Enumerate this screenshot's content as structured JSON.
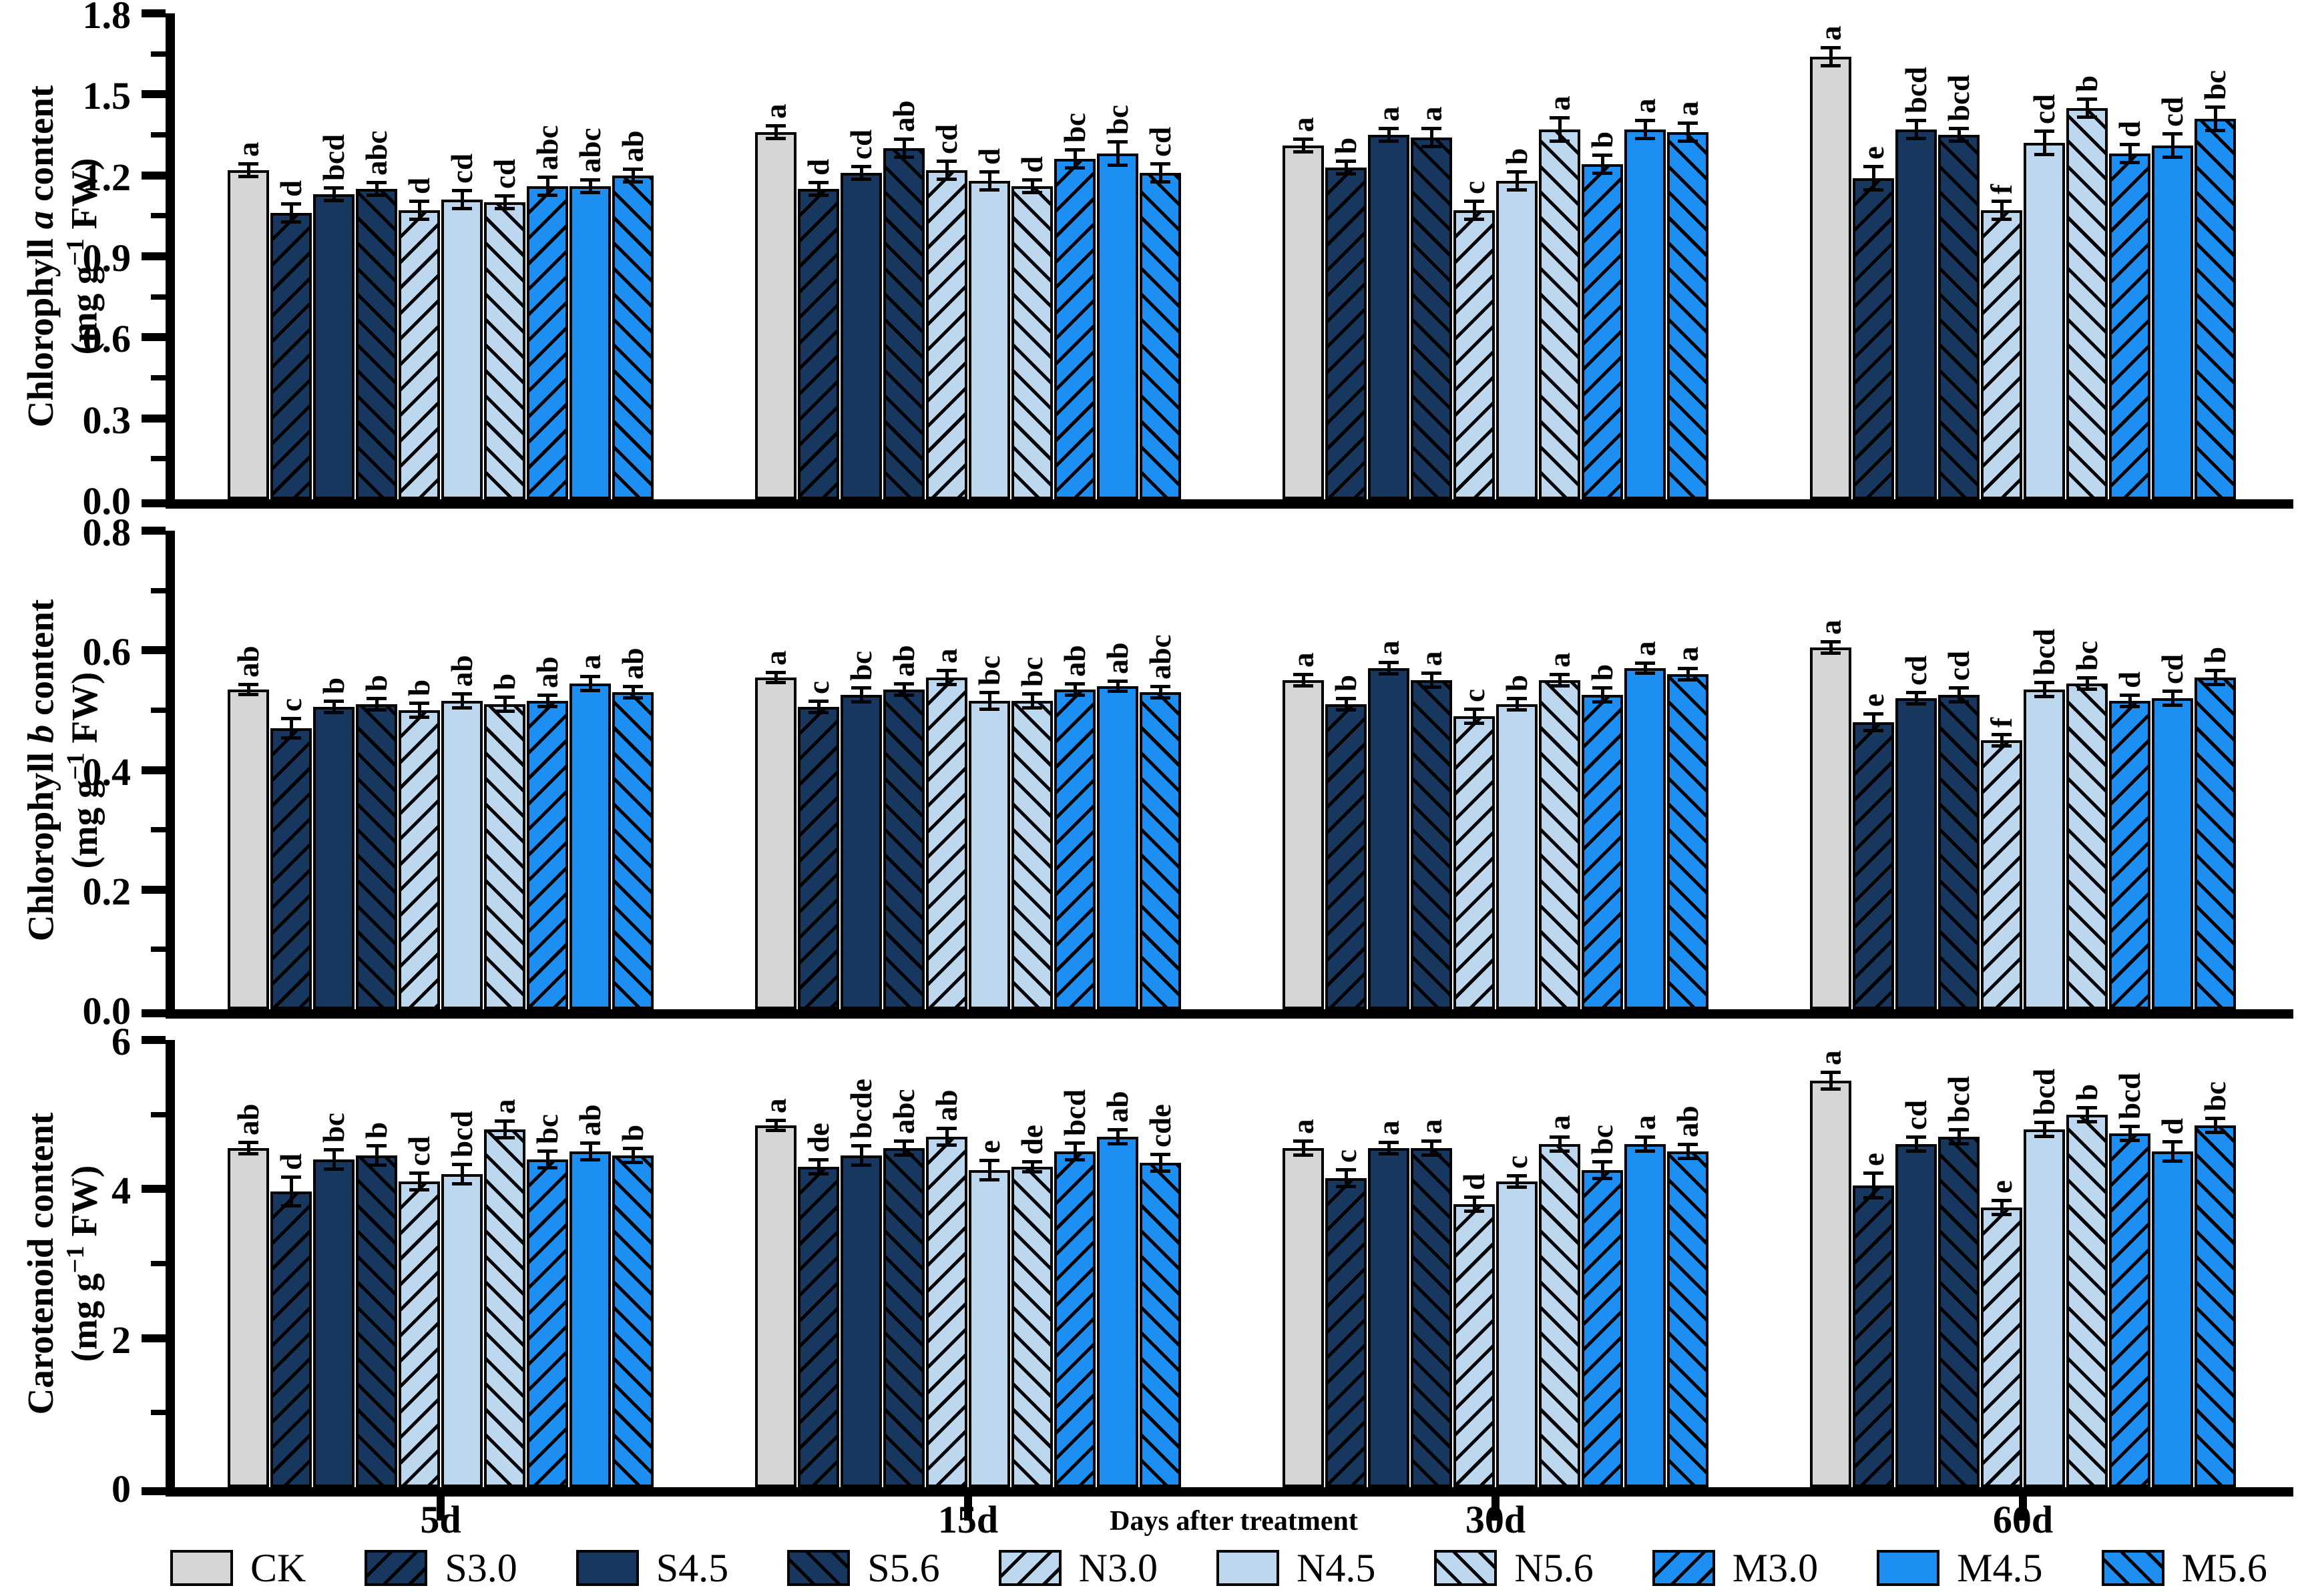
{
  "figure": {
    "x_axis_title": "Days after treatment",
    "group_labels": [
      "5d",
      "15d",
      "30d",
      "60d"
    ],
    "treatments": [
      "CK",
      "S3.0",
      "S4.5",
      "S5.6",
      "N3.0",
      "N4.5",
      "N5.6",
      "M3.0",
      "M4.5",
      "M5.6"
    ],
    "treatment_styles": [
      {
        "name": "CK",
        "fill": "#d6d6d6",
        "hatch": "none"
      },
      {
        "name": "S3.0",
        "fill": "#17375e",
        "hatch": "fwd"
      },
      {
        "name": "S4.5",
        "fill": "#17375e",
        "hatch": "none"
      },
      {
        "name": "S5.6",
        "fill": "#17375e",
        "hatch": "bwd"
      },
      {
        "name": "N3.0",
        "fill": "#bdd7ee",
        "hatch": "fwd"
      },
      {
        "name": "N4.5",
        "fill": "#bdd7ee",
        "hatch": "none"
      },
      {
        "name": "N5.6",
        "fill": "#bdd7ee",
        "hatch": "bwd"
      },
      {
        "name": "M3.0",
        "fill": "#1e8ff2",
        "hatch": "fwd"
      },
      {
        "name": "M4.5",
        "fill": "#1e8ff2",
        "hatch": "none"
      },
      {
        "name": "M5.6",
        "fill": "#1e8ff2",
        "hatch": "bwd"
      }
    ],
    "outline_color": "#000000",
    "hatch_color": "#000000"
  },
  "chart_data": [
    {
      "type": "bar",
      "ylabel_prefix": "Chlorophyll",
      "ylabel_italic": "a",
      "ylabel_suffix": "content",
      "ylabel_units": "(mg g-1 FW)",
      "ylim": [
        0,
        1.8
      ],
      "yticks": [
        "0.0",
        "0.3",
        "0.6",
        "0.9",
        "1.2",
        "1.5",
        "1.8"
      ],
      "categories": [
        "5d",
        "15d",
        "30d",
        "60d"
      ],
      "series": [
        {
          "name": "CK",
          "values": [
            1.22,
            1.36,
            1.31,
            1.64
          ],
          "errors": [
            0.02,
            0.02,
            0.02,
            0.03
          ],
          "letters": [
            "a",
            "a",
            "a",
            "a"
          ]
        },
        {
          "name": "S3.0",
          "values": [
            1.06,
            1.15,
            1.23,
            1.19
          ],
          "errors": [
            0.03,
            0.02,
            0.02,
            0.04
          ],
          "letters": [
            "d",
            "d",
            "b",
            "e"
          ]
        },
        {
          "name": "S4.5",
          "values": [
            1.13,
            1.21,
            1.35,
            1.37
          ],
          "errors": [
            0.02,
            0.02,
            0.02,
            0.03
          ],
          "letters": [
            "bcd",
            "cd",
            "a",
            "bcd"
          ]
        },
        {
          "name": "S5.6",
          "values": [
            1.15,
            1.3,
            1.34,
            1.35
          ],
          "errors": [
            0.02,
            0.03,
            0.03,
            0.02
          ],
          "letters": [
            "abc",
            "ab",
            "a",
            "bcd"
          ]
        },
        {
          "name": "N3.0",
          "values": [
            1.07,
            1.22,
            1.07,
            1.07
          ],
          "errors": [
            0.03,
            0.03,
            0.03,
            0.03
          ],
          "letters": [
            "d",
            "cd",
            "c",
            "f"
          ]
        },
        {
          "name": "N4.5",
          "values": [
            1.11,
            1.18,
            1.18,
            1.32
          ],
          "errors": [
            0.03,
            0.03,
            0.03,
            0.04
          ],
          "letters": [
            "cd",
            "d",
            "b",
            "cd"
          ]
        },
        {
          "name": "N5.6",
          "values": [
            1.1,
            1.16,
            1.37,
            1.45
          ],
          "errors": [
            0.02,
            0.02,
            0.04,
            0.03
          ],
          "letters": [
            "cd",
            "d",
            "a",
            "b"
          ]
        },
        {
          "name": "M3.0",
          "values": [
            1.16,
            1.26,
            1.24,
            1.28
          ],
          "errors": [
            0.03,
            0.03,
            0.03,
            0.03
          ],
          "letters": [
            "abc",
            "bc",
            "b",
            "d"
          ]
        },
        {
          "name": "M4.5",
          "values": [
            1.16,
            1.28,
            1.37,
            1.31
          ],
          "errors": [
            0.02,
            0.04,
            0.03,
            0.04
          ],
          "letters": [
            "abc",
            "bc",
            "a",
            "cd"
          ]
        },
        {
          "name": "M5.6",
          "values": [
            1.2,
            1.21,
            1.36,
            1.41
          ],
          "errors": [
            0.02,
            0.03,
            0.03,
            0.04
          ],
          "letters": [
            "ab",
            "cd",
            "a",
            "bc"
          ]
        }
      ]
    },
    {
      "type": "bar",
      "ylabel_prefix": "Chlorophyll",
      "ylabel_italic": "b",
      "ylabel_suffix": "content",
      "ylabel_units": "(mg g-1 FW)",
      "ylim": [
        0,
        0.8
      ],
      "yticks": [
        "0.0",
        "0.2",
        "0.4",
        "0.6",
        "0.8"
      ],
      "categories": [
        "5d",
        "15d",
        "30d",
        "60d"
      ],
      "series": [
        {
          "name": "CK",
          "values": [
            0.535,
            0.555,
            0.55,
            0.605
          ],
          "errors": [
            0.006,
            0.006,
            0.008,
            0.008
          ],
          "letters": [
            "ab",
            "a",
            "a",
            "a"
          ]
        },
        {
          "name": "S3.0",
          "values": [
            0.47,
            0.505,
            0.51,
            0.48
          ],
          "errors": [
            0.015,
            0.008,
            0.008,
            0.012
          ],
          "letters": [
            "c",
            "c",
            "b",
            "e"
          ]
        },
        {
          "name": "S4.5",
          "values": [
            0.505,
            0.525,
            0.57,
            0.52
          ],
          "errors": [
            0.008,
            0.01,
            0.008,
            0.008
          ],
          "letters": [
            "b",
            "bc",
            "a",
            "cd"
          ]
        },
        {
          "name": "S5.6",
          "values": [
            0.51,
            0.535,
            0.55,
            0.525
          ],
          "errors": [
            0.008,
            0.008,
            0.01,
            0.01
          ],
          "letters": [
            "b",
            "ab",
            "a",
            "cd"
          ]
        },
        {
          "name": "N3.0",
          "values": [
            0.5,
            0.555,
            0.49,
            0.45
          ],
          "errors": [
            0.01,
            0.01,
            0.01,
            0.008
          ],
          "letters": [
            "b",
            "a",
            "c",
            "f"
          ]
        },
        {
          "name": "N4.5",
          "values": [
            0.515,
            0.515,
            0.51,
            0.535
          ],
          "errors": [
            0.01,
            0.012,
            0.008,
            0.01
          ],
          "letters": [
            "ab",
            "bc",
            "b",
            "bcd"
          ]
        },
        {
          "name": "N5.6",
          "values": [
            0.51,
            0.515,
            0.55,
            0.545
          ],
          "errors": [
            0.01,
            0.01,
            0.008,
            0.008
          ],
          "letters": [
            "b",
            "bc",
            "a",
            "bc"
          ]
        },
        {
          "name": "M3.0",
          "values": [
            0.515,
            0.535,
            0.525,
            0.515
          ],
          "errors": [
            0.008,
            0.008,
            0.01,
            0.008
          ],
          "letters": [
            "ab",
            "ab",
            "b",
            "d"
          ]
        },
        {
          "name": "M4.5",
          "values": [
            0.545,
            0.54,
            0.57,
            0.52
          ],
          "errors": [
            0.01,
            0.006,
            0.005,
            0.01
          ],
          "letters": [
            "a",
            "ab",
            "a",
            "cd"
          ]
        },
        {
          "name": "M5.6",
          "values": [
            0.53,
            0.53,
            0.56,
            0.555
          ],
          "errors": [
            0.008,
            0.008,
            0.008,
            0.01
          ],
          "letters": [
            "ab",
            "abc",
            "a",
            "b"
          ]
        }
      ]
    },
    {
      "type": "bar",
      "ylabel_prefix": "Carotenoid",
      "ylabel_italic": "",
      "ylabel_suffix": "content",
      "ylabel_units": "(mg g-1 FW)",
      "ylim": [
        0,
        6
      ],
      "yticks": [
        "0",
        "2",
        "4",
        "6"
      ],
      "categories": [
        "5d",
        "15d",
        "30d",
        "60d"
      ],
      "series": [
        {
          "name": "CK",
          "values": [
            4.55,
            4.85,
            4.55,
            5.45
          ],
          "errors": [
            0.06,
            0.05,
            0.08,
            0.1
          ],
          "letters": [
            "ab",
            "a",
            "a",
            "a"
          ]
        },
        {
          "name": "S3.0",
          "values": [
            3.97,
            4.3,
            4.15,
            4.05
          ],
          "errors": [
            0.18,
            0.08,
            0.1,
            0.15
          ],
          "letters": [
            "d",
            "de",
            "c",
            "e"
          ]
        },
        {
          "name": "S4.5",
          "values": [
            4.4,
            4.45,
            4.55,
            4.6
          ],
          "errors": [
            0.12,
            0.12,
            0.06,
            0.08
          ],
          "letters": [
            "bc",
            "bcde",
            "a",
            "cd"
          ]
        },
        {
          "name": "S5.6",
          "values": [
            4.45,
            4.55,
            4.55,
            4.7
          ],
          "errors": [
            0.12,
            0.08,
            0.08,
            0.08
          ],
          "letters": [
            "b",
            "abc",
            "a",
            "bcd"
          ]
        },
        {
          "name": "N3.0",
          "values": [
            4.1,
            4.7,
            3.8,
            3.75
          ],
          "errors": [
            0.1,
            0.1,
            0.08,
            0.08
          ],
          "letters": [
            "cd",
            "ab",
            "d",
            "e"
          ]
        },
        {
          "name": "N4.5",
          "values": [
            4.2,
            4.25,
            4.1,
            4.8
          ],
          "errors": [
            0.12,
            0.12,
            0.06,
            0.08
          ],
          "letters": [
            "bcd",
            "e",
            "c",
            "bcd"
          ]
        },
        {
          "name": "N5.6",
          "values": [
            4.8,
            4.3,
            4.6,
            5.0
          ],
          "errors": [
            0.1,
            0.05,
            0.08,
            0.08
          ],
          "letters": [
            "a",
            "de",
            "a",
            "b"
          ]
        },
        {
          "name": "M3.0",
          "values": [
            4.4,
            4.5,
            4.25,
            4.75
          ],
          "errors": [
            0.1,
            0.1,
            0.1,
            0.08
          ],
          "letters": [
            "bc",
            "bcd",
            "bc",
            "bcd"
          ]
        },
        {
          "name": "M4.5",
          "values": [
            4.5,
            4.7,
            4.6,
            4.5
          ],
          "errors": [
            0.1,
            0.08,
            0.08,
            0.12
          ],
          "letters": [
            "ab",
            "ab",
            "a",
            "d"
          ]
        },
        {
          "name": "M5.6",
          "values": [
            4.45,
            4.35,
            4.5,
            4.85
          ],
          "errors": [
            0.08,
            0.1,
            0.08,
            0.08
          ],
          "letters": [
            "b",
            "cde",
            "ab",
            "bc"
          ]
        }
      ]
    }
  ]
}
